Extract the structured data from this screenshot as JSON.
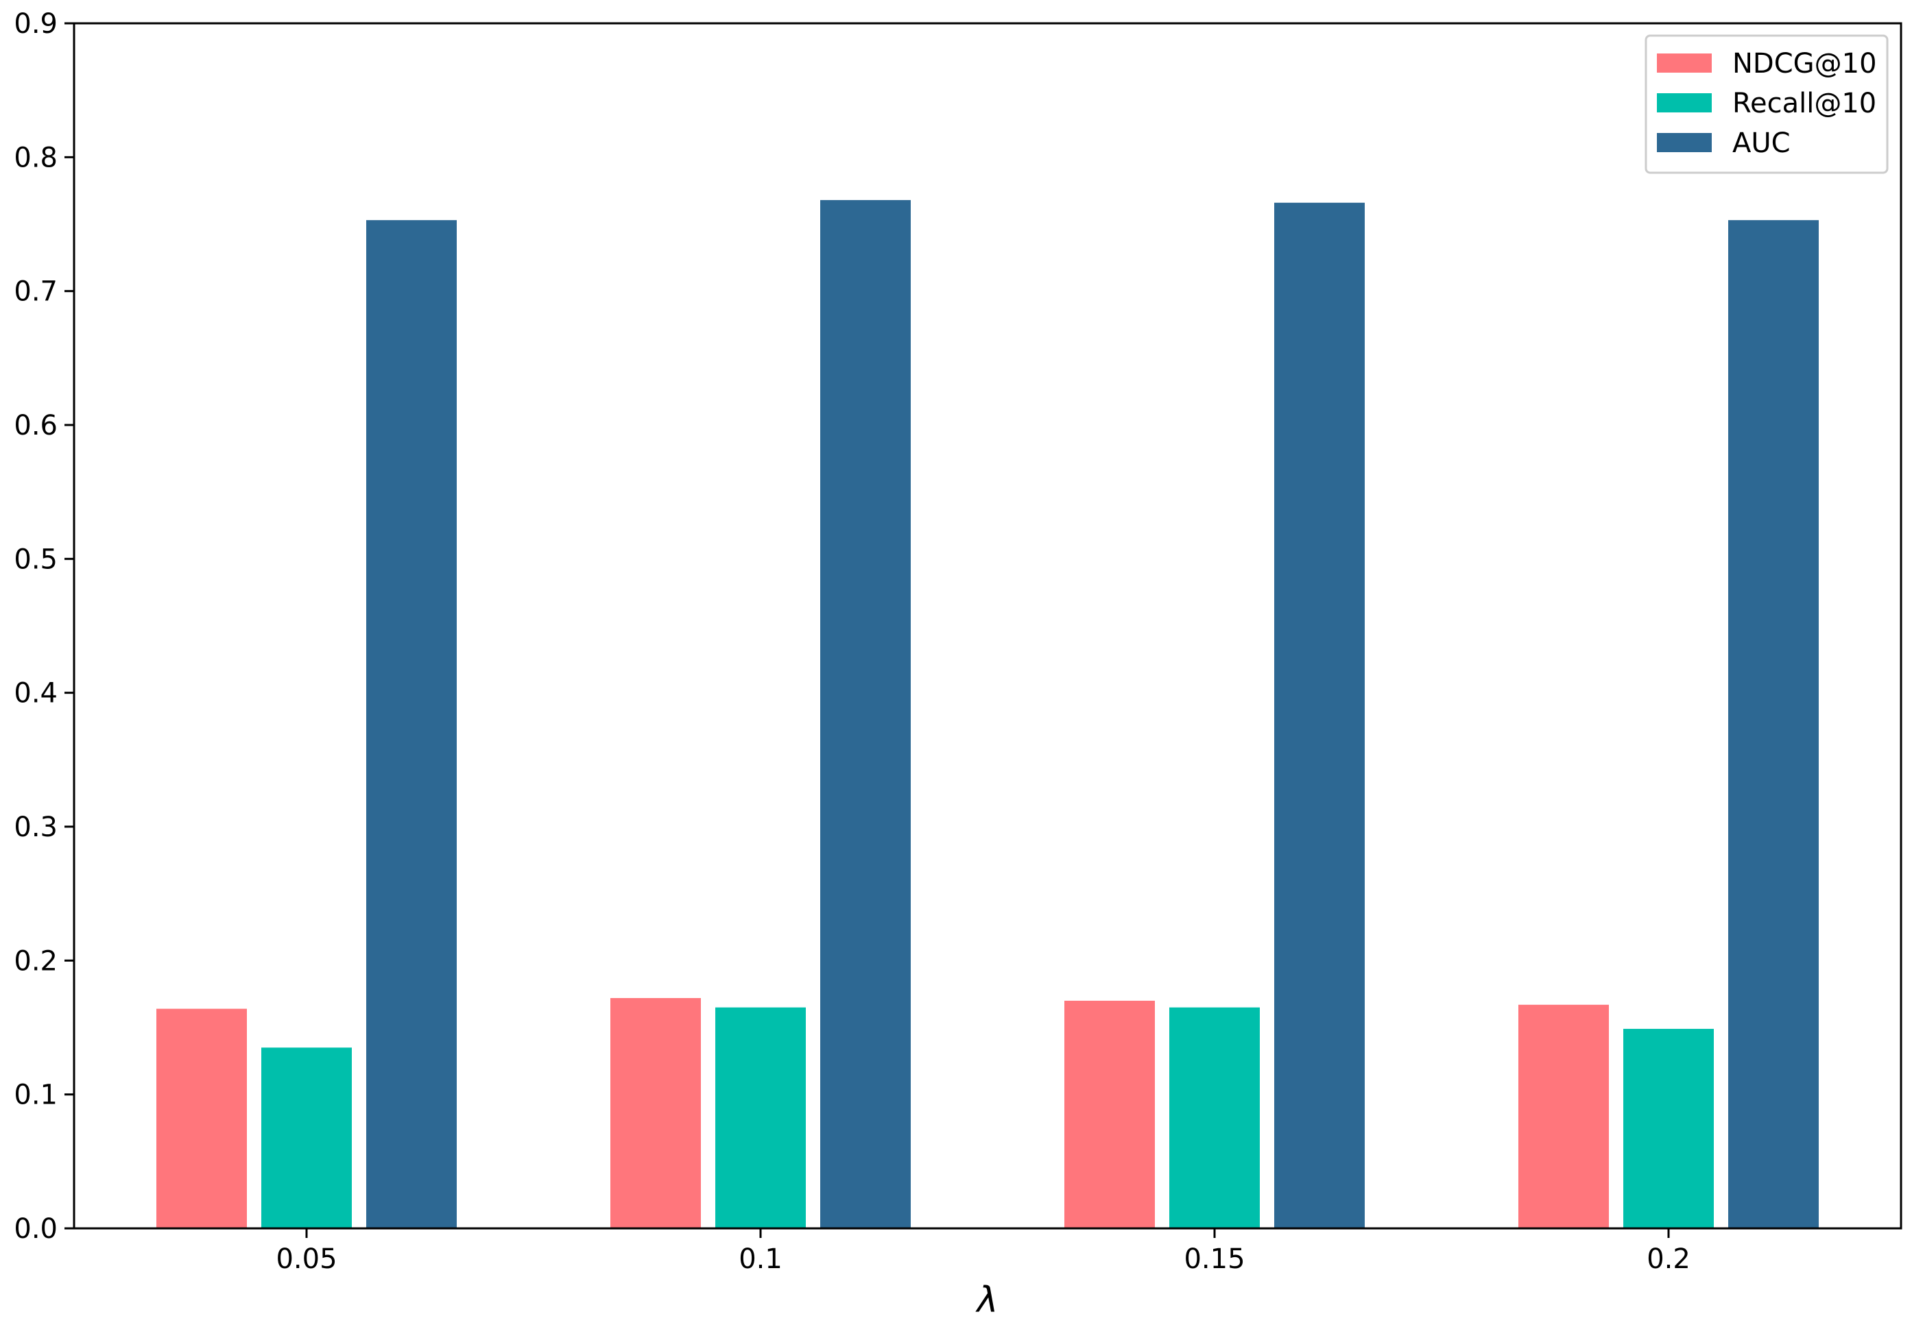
{
  "chart_data": {
    "type": "bar",
    "title": "",
    "xlabel": "λ",
    "ylabel": "",
    "categories": [
      "0.05",
      "0.1",
      "0.15",
      "0.2"
    ],
    "ylim": [
      0,
      0.9
    ],
    "yticks": [
      0.0,
      0.1,
      0.2,
      0.3,
      0.4,
      0.5,
      0.6,
      0.7,
      0.8,
      0.9
    ],
    "ytick_labels": [
      "0.0",
      "0.1",
      "0.2",
      "0.3",
      "0.4",
      "0.5",
      "0.6",
      "0.7",
      "0.8",
      "0.9"
    ],
    "grid": false,
    "legend_position": "top-right",
    "series": [
      {
        "name": "NDCG@10",
        "color": "#ff767c",
        "values": [
          0.164,
          0.172,
          0.17,
          0.167
        ]
      },
      {
        "name": "Recall@10",
        "color": "#00bfab",
        "values": [
          0.135,
          0.165,
          0.165,
          0.149
        ]
      },
      {
        "name": "AUC",
        "color": "#2d6893",
        "values": [
          0.753,
          0.768,
          0.766,
          0.753
        ]
      }
    ]
  }
}
